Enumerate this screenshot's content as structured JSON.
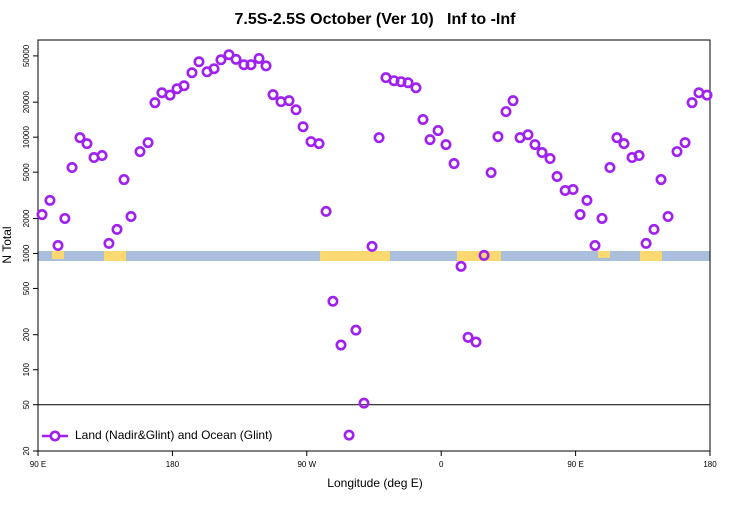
{
  "chart_data": {
    "type": "scatter",
    "title": "7.5S-2.5S October (Ver 10)   Inf to -Inf",
    "x_label": "Longitude (deg E)",
    "y_label": "N Total",
    "xlim": [
      90,
      540
    ],
    "xticks": [
      {
        "value": 90,
        "label": "90 E"
      },
      180,
      {
        "value": 270,
        "label": "90 W"
      },
      {
        "value": 360,
        "label": "0"
      },
      {
        "value": 450,
        "label": "90 E"
      },
      {
        "value": 540,
        "label": "180"
      }
    ],
    "ylim": [
      20,
      68500
    ],
    "yticks": [
      20,
      50,
      100,
      200,
      500,
      1000,
      2000,
      5000,
      10000,
      20000,
      50000
    ],
    "log_y": true,
    "reference_line": 50,
    "legend": "bottom left",
    "series": [
      {
        "name": "Land (Nadir&Glint) and Ocean (Glint)",
        "color": "#a020f0",
        "x": [
          92.7,
          98,
          103.4,
          108,
          112.8,
          118.1,
          122.8,
          127.5,
          132.9,
          137.5,
          142.9,
          147.6,
          152.3,
          158.3,
          163.7,
          168.3,
          173,
          178.4,
          183.1,
          187.8,
          193.1,
          197.8,
          203.2,
          207.9,
          212.5,
          217.9,
          222.6,
          227.9,
          232.6,
          238,
          242.7,
          247.4,
          252.7,
          258.1,
          262.8,
          267.5,
          272.8,
          278.2,
          282.9,
          287.5,
          292.9,
          298.3,
          302.9,
          308.3,
          313.7,
          318.4,
          323,
          328.4,
          333.1,
          337.8,
          343.1,
          347.8,
          352.5,
          357.9,
          363.2,
          368.6,
          373.3,
          378,
          383.3,
          388.7,
          393.4,
          398,
          403.4,
          408.1,
          412.8,
          418.1,
          422.8,
          427.5,
          432.9,
          437.6,
          443,
          448.3,
          453,
          457.6,
          463,
          467.7,
          473,
          477.7,
          482.4,
          487.8,
          492.5,
          497.2,
          502.5,
          507.2,
          511.9,
          517.9,
          523.3,
          528,
          532.6,
          538
        ],
        "values": [
          2160,
          2860,
          1170,
          2000,
          5480,
          9900,
          8800,
          6680,
          6950,
          1220,
          1610,
          4320,
          2080,
          7520,
          8980,
          19800,
          24100,
          23000,
          26100,
          27700,
          35800,
          44500,
          36500,
          38800,
          46300,
          51200,
          46700,
          42000,
          42000,
          47500,
          41000,
          23200,
          20200,
          20600,
          17200,
          12300,
          9160,
          8800,
          2300,
          388,
          163,
          27.4,
          219,
          51.6,
          1150,
          9900,
          32500,
          30600,
          30000,
          29400,
          26600,
          14200,
          9530,
          11400,
          8630,
          5930,
          774,
          190,
          173,
          962,
          4960,
          10100,
          16600,
          20600,
          9900,
          10500,
          8630,
          7380,
          6550,
          4590,
          3480,
          3550,
          2160,
          2860,
          1170,
          2000,
          5480,
          9900,
          8800,
          6680,
          6950,
          1220,
          1610,
          4320,
          2080,
          7520,
          8980,
          19800,
          24100,
          23000
        ]
      }
    ]
  }
}
